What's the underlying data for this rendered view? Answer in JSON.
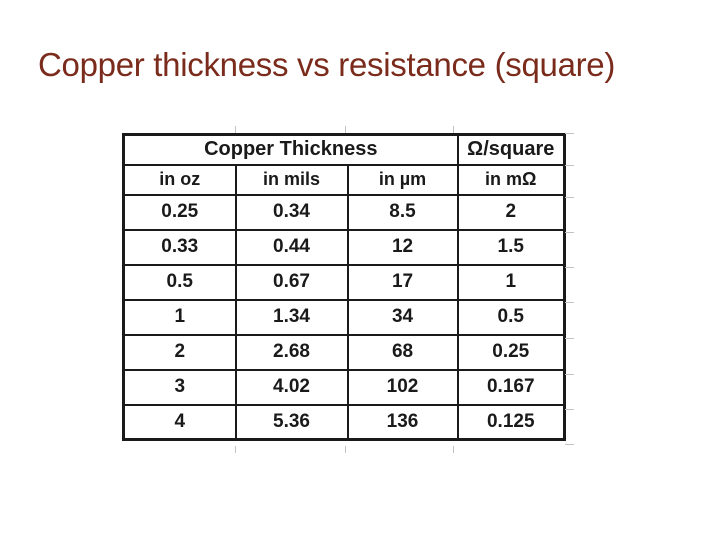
{
  "slide": {
    "title": "Copper thickness vs resistance (square)"
  },
  "colors": {
    "background": "#ffffff",
    "title_text": "#7a2b1b",
    "table_text": "#1a1a1a",
    "table_border": "#1a1a1a",
    "gridline_stub": "#c2c2c2"
  },
  "table": {
    "group_header": "Copper Thickness",
    "resistance_header": "Ω/square",
    "unit_headers": [
      "in oz",
      "in mils",
      "in µm",
      "in mΩ"
    ],
    "rows": [
      [
        "0.25",
        "0.34",
        "8.5",
        "2"
      ],
      [
        "0.33",
        "0.44",
        "12",
        "1.5"
      ],
      [
        "0.5",
        "0.67",
        "17",
        "1"
      ],
      [
        "1",
        "1.34",
        "34",
        "0.5"
      ],
      [
        "2",
        "2.68",
        "68",
        "0.25"
      ],
      [
        "3",
        "4.02",
        "102",
        "0.167"
      ],
      [
        "4",
        "5.36",
        "136",
        "0.125"
      ]
    ]
  },
  "chart_data": {
    "type": "table",
    "title": "Copper thickness vs resistance (square)",
    "column_groups": [
      {
        "label": "Copper Thickness",
        "span": 3
      },
      {
        "label": "Ω/square",
        "span": 1
      }
    ],
    "columns": [
      "in oz",
      "in mils",
      "in µm",
      "in mΩ"
    ],
    "rows": [
      [
        0.25,
        0.34,
        8.5,
        2
      ],
      [
        0.33,
        0.44,
        12,
        1.5
      ],
      [
        0.5,
        0.67,
        17,
        1
      ],
      [
        1,
        1.34,
        34,
        0.5
      ],
      [
        2,
        2.68,
        68,
        0.25
      ],
      [
        3,
        4.02,
        102,
        0.167
      ],
      [
        4,
        5.36,
        136,
        0.125
      ]
    ]
  }
}
